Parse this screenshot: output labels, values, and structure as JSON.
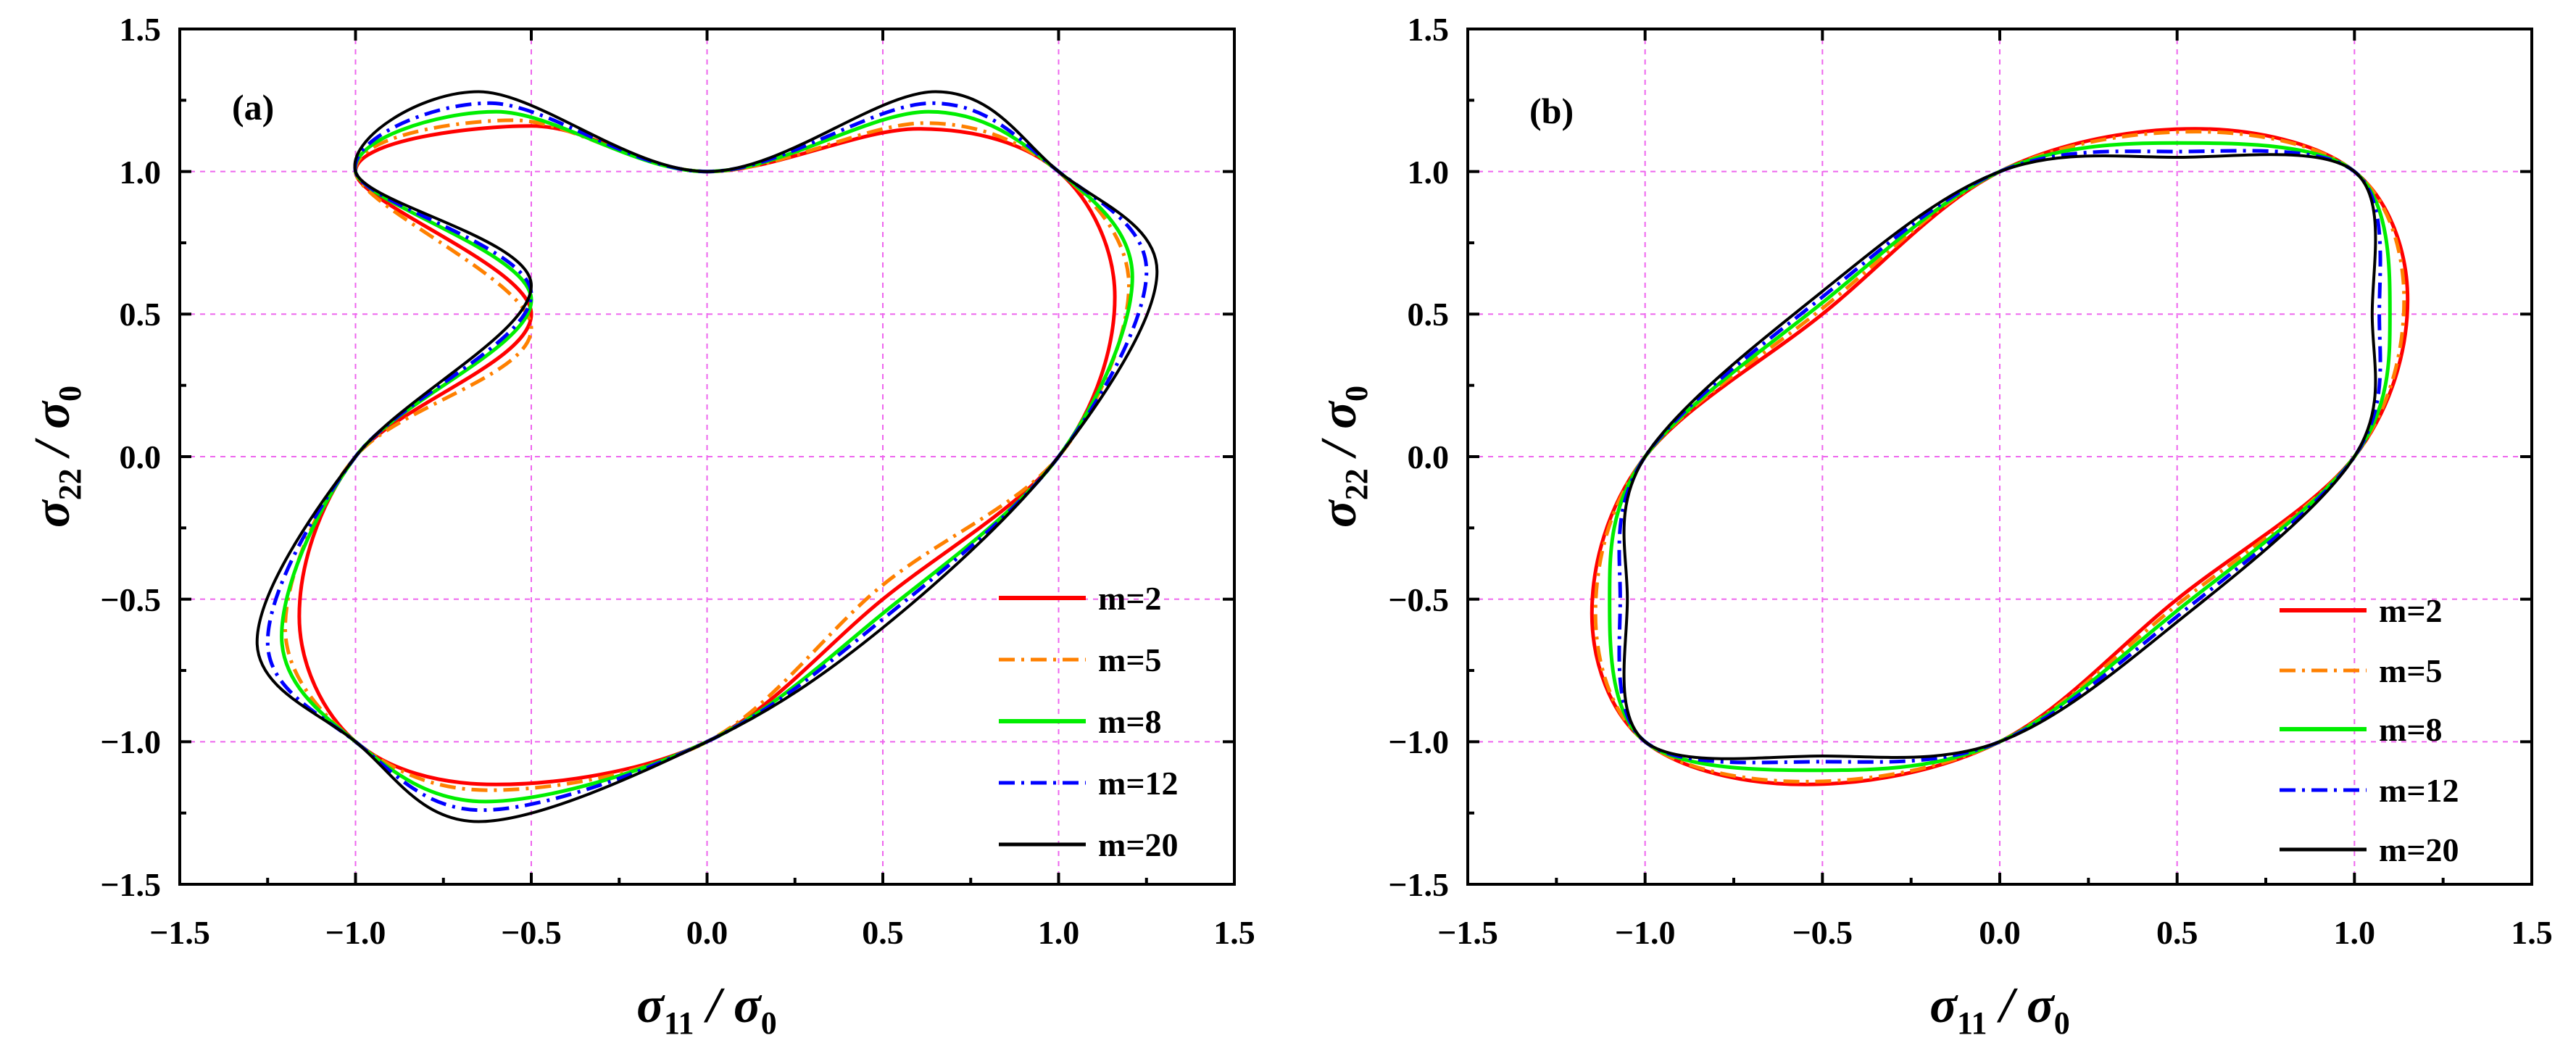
{
  "chart_data": [
    {
      "type": "line",
      "panel_label": "(a)",
      "xlabel": "σ11 / σ0",
      "ylabel": "σ22 / σ0",
      "xlim": [
        -1.5,
        1.5
      ],
      "ylim": [
        -1.5,
        1.5
      ],
      "x_ticks": [
        -1.5,
        -1.0,
        -0.5,
        0.0,
        0.5,
        1.0,
        1.5
      ],
      "y_ticks": [
        -1.5,
        -1.0,
        -0.5,
        0.0,
        0.5,
        1.0,
        1.5
      ],
      "x_tick_labels": [
        "−1.5",
        "−1.0",
        "−0.5",
        "0.0",
        "0.5",
        "1.0",
        "1.5"
      ],
      "y_tick_labels": [
        "−1.5",
        "−1.0",
        "−0.5",
        "0.0",
        "0.5",
        "1.0",
        "1.5"
      ],
      "grid": true,
      "legend_position": "bottom-right",
      "series": [
        {
          "name": "m=2",
          "color": "#ff0000",
          "dash": "solid",
          "points": [
            [
              -1.0,
              1.0
            ],
            [
              -0.5,
              1.16
            ],
            [
              0.0,
              1.0
            ],
            [
              0.6,
              1.15
            ],
            [
              1.0,
              1.0
            ],
            [
              1.16,
              0.56
            ],
            [
              1.0,
              0.0
            ],
            [
              0.5,
              -0.5
            ],
            [
              0.0,
              -1.0
            ],
            [
              -0.6,
              -1.15
            ],
            [
              -1.0,
              -1.0
            ],
            [
              -1.16,
              -0.56
            ],
            [
              -1.0,
              0.0
            ],
            [
              -0.5,
              0.5
            ]
          ]
        },
        {
          "name": "m=5",
          "color": "#ff8000",
          "dash": "dashdot",
          "points": [
            [
              -1.0,
              1.0
            ],
            [
              -0.55,
              1.18
            ],
            [
              0.0,
              1.0
            ],
            [
              0.62,
              1.17
            ],
            [
              1.0,
              1.0
            ],
            [
              1.2,
              0.6
            ],
            [
              1.0,
              0.0
            ],
            [
              0.5,
              -0.45
            ],
            [
              0.0,
              -1.0
            ],
            [
              -0.62,
              -1.17
            ],
            [
              -1.0,
              -1.0
            ],
            [
              -1.2,
              -0.6
            ],
            [
              -1.0,
              0.0
            ],
            [
              -0.5,
              0.45
            ]
          ]
        },
        {
          "name": "m=8",
          "color": "#00ee00",
          "dash": "solid",
          "points": [
            [
              -1.0,
              1.0
            ],
            [
              -0.6,
              1.21
            ],
            [
              0.0,
              1.0
            ],
            [
              0.63,
              1.21
            ],
            [
              1.0,
              1.0
            ],
            [
              1.21,
              0.63
            ],
            [
              1.0,
              0.0
            ],
            [
              0.5,
              -0.55
            ],
            [
              0.0,
              -1.0
            ],
            [
              -0.63,
              -1.21
            ],
            [
              -1.0,
              -1.0
            ],
            [
              -1.21,
              -0.63
            ],
            [
              -1.0,
              0.0
            ],
            [
              -0.5,
              0.55
            ]
          ]
        },
        {
          "name": "m=12",
          "color": "#0000ff",
          "dash": "dashdot",
          "points": [
            [
              -1.0,
              1.0
            ],
            [
              -0.62,
              1.24
            ],
            [
              0.0,
              1.0
            ],
            [
              0.64,
              1.24
            ],
            [
              1.0,
              1.0
            ],
            [
              1.25,
              0.65
            ],
            [
              1.0,
              0.0
            ],
            [
              0.5,
              -0.57
            ],
            [
              0.0,
              -1.0
            ],
            [
              -0.64,
              -1.24
            ],
            [
              -1.0,
              -1.0
            ],
            [
              -1.25,
              -0.65
            ],
            [
              -1.0,
              0.0
            ],
            [
              -0.5,
              0.57
            ]
          ]
        },
        {
          "name": "m=20",
          "color": "#000000",
          "dash": "solid",
          "points": [
            [
              -1.0,
              1.0
            ],
            [
              -0.65,
              1.28
            ],
            [
              0.0,
              1.0
            ],
            [
              0.65,
              1.28
            ],
            [
              1.0,
              1.0
            ],
            [
              1.28,
              0.65
            ],
            [
              1.0,
              0.0
            ],
            [
              0.5,
              -0.6
            ],
            [
              0.0,
              -1.0
            ],
            [
              -0.65,
              -1.28
            ],
            [
              -1.0,
              -1.0
            ],
            [
              -1.28,
              -0.65
            ],
            [
              -1.0,
              0.0
            ],
            [
              -0.5,
              0.6
            ]
          ]
        }
      ]
    },
    {
      "type": "line",
      "panel_label": "(b)",
      "xlabel": "σ11 / σ0",
      "ylabel": "σ22 / σ0",
      "xlim": [
        -1.5,
        1.5
      ],
      "ylim": [
        -1.5,
        1.5
      ],
      "x_ticks": [
        -1.5,
        -1.0,
        -0.5,
        0.0,
        0.5,
        1.0,
        1.5
      ],
      "y_ticks": [
        -1.5,
        -1.0,
        -0.5,
        0.0,
        0.5,
        1.0,
        1.5
      ],
      "x_tick_labels": [
        "−1.5",
        "−1.0",
        "−0.5",
        "0.0",
        "0.5",
        "1.0",
        "1.5"
      ],
      "y_tick_labels": [
        "−1.5",
        "−1.0",
        "−0.5",
        "0.0",
        "0.5",
        "1.0",
        "1.5"
      ],
      "grid": true,
      "legend_position": "bottom-right",
      "series": [
        {
          "name": "m=2",
          "color": "#ff0000",
          "dash": "solid",
          "points": [
            [
              0.0,
              1.0
            ],
            [
              0.55,
              1.15
            ],
            [
              1.0,
              1.0
            ],
            [
              1.15,
              0.55
            ],
            [
              1.0,
              0.0
            ],
            [
              0.5,
              -0.5
            ],
            [
              0.0,
              -1.0
            ],
            [
              -0.55,
              -1.15
            ],
            [
              -1.0,
              -1.0
            ],
            [
              -1.15,
              -0.55
            ],
            [
              -1.0,
              0.0
            ],
            [
              -0.5,
              0.5
            ]
          ]
        },
        {
          "name": "m=5",
          "color": "#ff8000",
          "dash": "dashdot",
          "points": [
            [
              0.0,
              1.0
            ],
            [
              0.55,
              1.14
            ],
            [
              1.0,
              1.0
            ],
            [
              1.14,
              0.55
            ],
            [
              1.0,
              0.0
            ],
            [
              0.5,
              -0.52
            ],
            [
              0.0,
              -1.0
            ],
            [
              -0.55,
              -1.14
            ],
            [
              -1.0,
              -1.0
            ],
            [
              -1.14,
              -0.55
            ],
            [
              -1.0,
              0.0
            ],
            [
              -0.5,
              0.52
            ]
          ]
        },
        {
          "name": "m=8",
          "color": "#00ee00",
          "dash": "solid",
          "points": [
            [
              0.0,
              1.0
            ],
            [
              0.5,
              1.1
            ],
            [
              1.0,
              1.0
            ],
            [
              1.1,
              0.5
            ],
            [
              1.0,
              0.0
            ],
            [
              0.5,
              -0.54
            ],
            [
              0.0,
              -1.0
            ],
            [
              -0.5,
              -1.1
            ],
            [
              -1.0,
              -1.0
            ],
            [
              -1.1,
              -0.5
            ],
            [
              -1.0,
              0.0
            ],
            [
              -0.5,
              0.54
            ]
          ]
        },
        {
          "name": "m=12",
          "color": "#0000ff",
          "dash": "dashdot",
          "points": [
            [
              0.0,
              1.0
            ],
            [
              0.5,
              1.07
            ],
            [
              1.0,
              1.0
            ],
            [
              1.07,
              0.5
            ],
            [
              1.0,
              0.0
            ],
            [
              0.5,
              -0.56
            ],
            [
              0.0,
              -1.0
            ],
            [
              -0.5,
              -1.07
            ],
            [
              -1.0,
              -1.0
            ],
            [
              -1.07,
              -0.5
            ],
            [
              -1.0,
              0.0
            ],
            [
              -0.5,
              0.56
            ]
          ]
        },
        {
          "name": "m=20",
          "color": "#000000",
          "dash": "solid",
          "points": [
            [
              0.0,
              1.0
            ],
            [
              0.5,
              1.05
            ],
            [
              1.0,
              1.0
            ],
            [
              1.05,
              0.5
            ],
            [
              1.0,
              0.0
            ],
            [
              0.5,
              -0.58
            ],
            [
              0.0,
              -1.0
            ],
            [
              -0.5,
              -1.05
            ],
            [
              -1.0,
              -1.0
            ],
            [
              -1.05,
              -0.5
            ],
            [
              -1.0,
              0.0
            ],
            [
              -0.5,
              0.58
            ]
          ]
        }
      ]
    }
  ]
}
